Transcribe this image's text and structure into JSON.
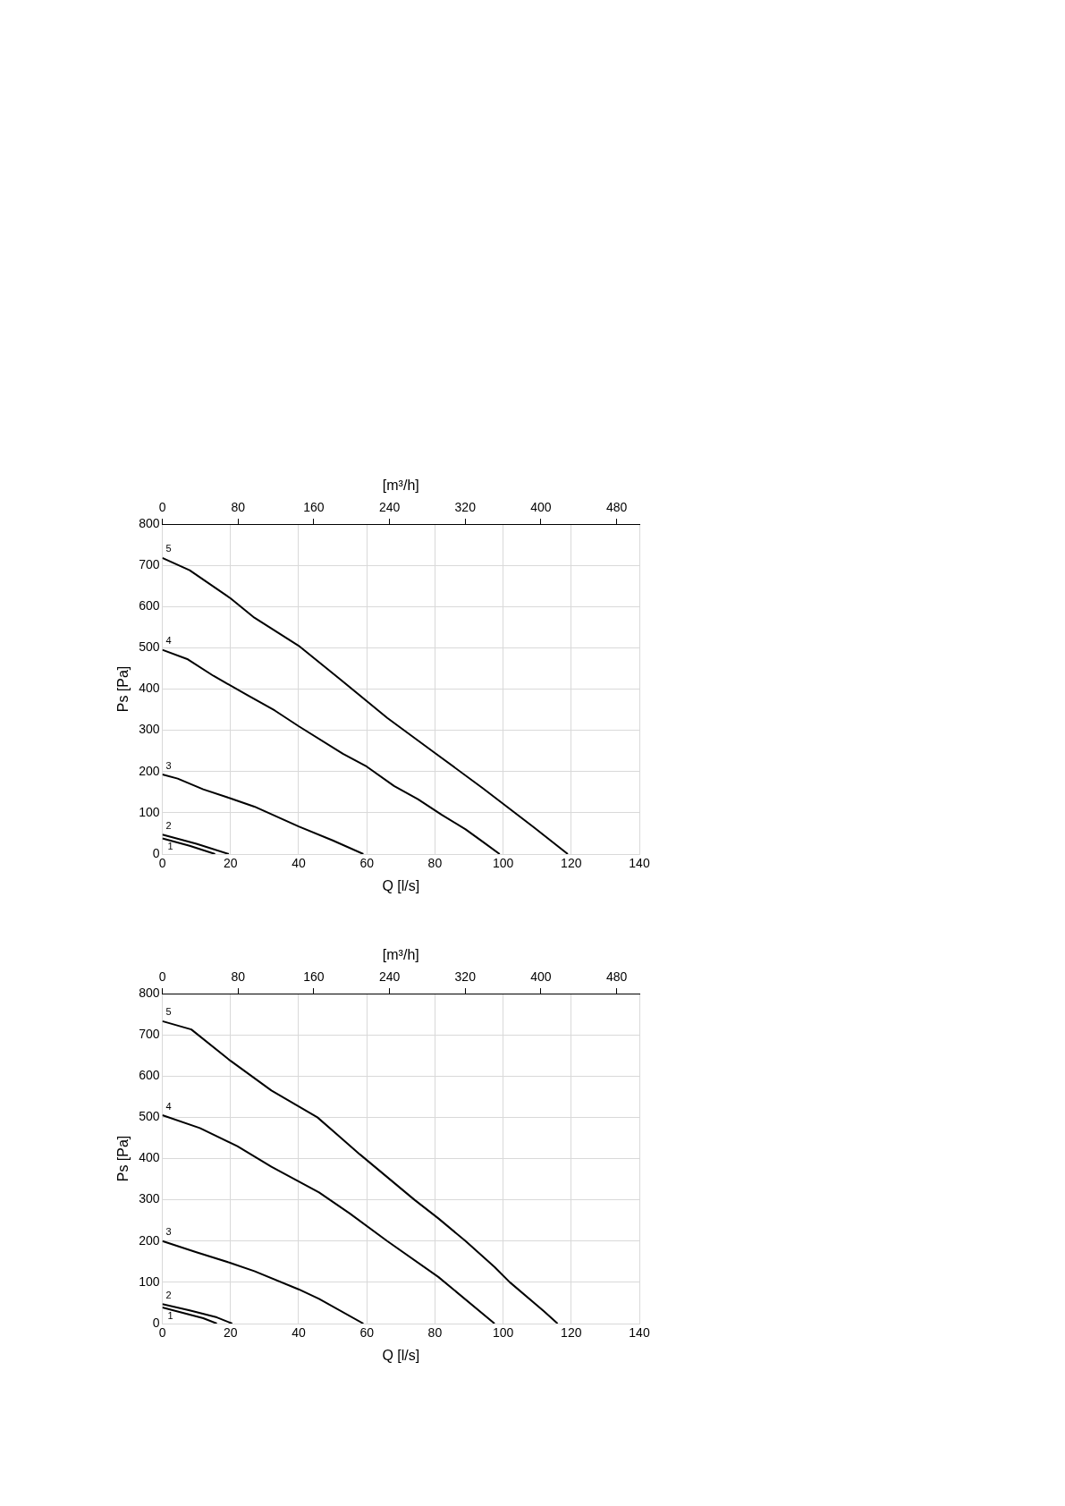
{
  "chart_data": [
    {
      "type": "line",
      "xlabel": "Q [l/s]",
      "ylabel": "Ps [Pa]",
      "x2label": "[m³/h]",
      "xlim": [
        0,
        140
      ],
      "xticks": [
        0,
        20,
        40,
        60,
        80,
        100,
        120,
        140
      ],
      "x2lim": [
        0,
        504
      ],
      "x2ticks": [
        0,
        80,
        160,
        240,
        320,
        400,
        480
      ],
      "ylim": [
        0,
        800
      ],
      "yticks": [
        0,
        100,
        200,
        300,
        400,
        500,
        600,
        700,
        800
      ],
      "grid": true,
      "legend": false,
      "marker": "none",
      "line_style": "solid",
      "series": [
        {
          "name": "1",
          "color": "#000000",
          "x": [
            0,
            8,
            15.5
          ],
          "values": [
            38,
            20,
            0
          ]
        },
        {
          "name": "2",
          "color": "#000000",
          "x": [
            0,
            10,
            19.5
          ],
          "values": [
            47,
            25,
            0
          ]
        },
        {
          "name": "3",
          "color": "#000000",
          "x": [
            0,
            4.5,
            12,
            20,
            27,
            40,
            50,
            59
          ],
          "values": [
            193,
            183,
            157,
            135,
            115,
            67,
            33,
            0
          ]
        },
        {
          "name": "4",
          "color": "#000000",
          "x": [
            0,
            7.5,
            15,
            25,
            33,
            40,
            53,
            60,
            68,
            75,
            82,
            89,
            94,
            99
          ],
          "values": [
            495,
            472,
            432,
            385,
            348,
            310,
            243,
            212,
            165,
            133,
            95,
            60,
            30,
            0
          ]
        },
        {
          "name": "5",
          "color": "#000000",
          "x": [
            0,
            8,
            20,
            27,
            40,
            52,
            66,
            80,
            94,
            109,
            119
          ],
          "values": [
            718,
            688,
            620,
            573,
            505,
            425,
            330,
            245,
            160,
            65,
            0
          ]
        }
      ]
    },
    {
      "type": "line",
      "xlabel": "Q [l/s]",
      "ylabel": "Ps [Pa]",
      "x2label": "[m³/h]",
      "xlim": [
        0,
        140
      ],
      "xticks": [
        0,
        20,
        40,
        60,
        80,
        100,
        120,
        140
      ],
      "x2lim": [
        0,
        504
      ],
      "x2ticks": [
        0,
        80,
        160,
        240,
        320,
        400,
        480
      ],
      "ylim": [
        0,
        800
      ],
      "yticks": [
        0,
        100,
        200,
        300,
        400,
        500,
        600,
        700,
        800
      ],
      "grid": true,
      "legend": false,
      "marker": "none",
      "line_style": "solid",
      "series": [
        {
          "name": "1",
          "color": "#000000",
          "x": [
            0,
            12,
            16
          ],
          "values": [
            39,
            13,
            0
          ]
        },
        {
          "name": "2",
          "color": "#000000",
          "x": [
            0,
            8,
            16,
            20.5
          ],
          "values": [
            47,
            32,
            15,
            0
          ]
        },
        {
          "name": "3",
          "color": "#000000",
          "x": [
            0,
            10,
            20,
            27,
            40,
            46,
            59
          ],
          "values": [
            200,
            173,
            147,
            127,
            83,
            60,
            0
          ]
        },
        {
          "name": "4",
          "color": "#000000",
          "x": [
            0,
            11,
            22,
            32,
            46,
            55,
            66,
            81,
            97.5
          ],
          "values": [
            505,
            474,
            430,
            380,
            318,
            267,
            200,
            113,
            0
          ]
        },
        {
          "name": "5",
          "color": "#000000",
          "x": [
            0,
            8.5,
            20,
            32,
            45.5,
            58,
            74,
            81,
            89,
            97.5,
            102,
            112,
            116
          ],
          "values": [
            733,
            713,
            637,
            565,
            500,
            410,
            300,
            255,
            200,
            137,
            100,
            30,
            0
          ]
        }
      ]
    }
  ]
}
